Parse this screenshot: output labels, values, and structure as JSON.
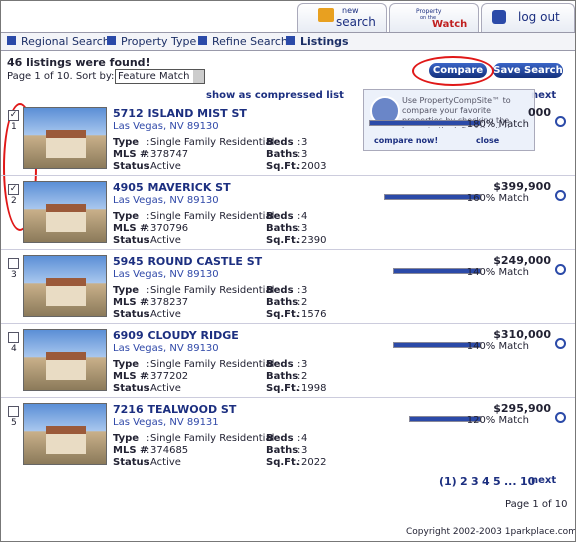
{
  "header": {
    "tabs": {
      "new_search": [
        "new",
        "search"
      ],
      "watch": [
        "Property",
        "on the",
        "Watch"
      ],
      "logout": "log out"
    },
    "breadcrumbs": [
      "Regional Search",
      "Property Type",
      "Refine Search",
      "Listings"
    ]
  },
  "summary": {
    "found": "46 listings were found!",
    "page_sort": "Page 1 of 10. Sort by:",
    "sort_value": "Feature Match"
  },
  "buttons": {
    "compare": "Compare",
    "save": "Save Search"
  },
  "compressed": "show as compressed list",
  "next": "next",
  "tooltip": {
    "text": "Use PropertyCompSite™ to compare your favorite properties by checking the boxes to the left of the listing",
    "compare_now": "compare now!",
    "close": "close"
  },
  "labels": {
    "type": "Type",
    "mls": "MLS #",
    "status": "Status",
    "beds": "Beds",
    "baths": "Baths",
    "sqft": "Sq.Ft.",
    "sep": ":"
  },
  "listings": [
    {
      "number": "1",
      "checked": true,
      "address": "5712 ISLAND MIST ST",
      "city": "Las Vegas, NV 89130",
      "type": "Single Family Residential",
      "mls": "378747",
      "status": "Active",
      "beds": "3",
      "baths": "3",
      "sqft": "2003",
      "price": "000",
      "match": "180% Match"
    },
    {
      "number": "2",
      "checked": true,
      "address": "4905 MAVERICK ST",
      "city": "Las Vegas, NV 89130",
      "type": "Single Family Residential",
      "mls": "370796",
      "status": "Active",
      "beds": "4",
      "baths": "3",
      "sqft": "2390",
      "price": "$399,900",
      "match": "160% Match"
    },
    {
      "number": "3",
      "checked": false,
      "address": "5945 ROUND CASTLE ST",
      "city": "Las Vegas, NV 89130",
      "type": "Single Family Residential",
      "mls": "378237",
      "status": "Active",
      "beds": "3",
      "baths": "2",
      "sqft": "1576",
      "price": "$249,000",
      "match": "140% Match"
    },
    {
      "number": "4",
      "checked": false,
      "address": "6909 CLOUDY RIDGE",
      "city": "Las Vegas, NV 89130",
      "type": "Single Family Residential",
      "mls": "377202",
      "status": "Active",
      "beds": "3",
      "baths": "2",
      "sqft": "1998",
      "price": "$310,000",
      "match": "140% Match"
    },
    {
      "number": "5",
      "checked": false,
      "address": "7216 TEALWOOD ST",
      "city": "Las Vegas, NV 89131",
      "type": "Single Family Residential",
      "mls": "374685",
      "status": "Active",
      "beds": "4",
      "baths": "3",
      "sqft": "2022",
      "price": "$295,900",
      "match": "120% Match"
    }
  ],
  "pagination": {
    "pages": [
      "(1)",
      "2",
      "3",
      "4",
      "5",
      "...",
      "10"
    ],
    "next": "next",
    "page_info": "Page 1 of 10"
  },
  "footer": "Copyright 2002-2003 1parkplace.com"
}
